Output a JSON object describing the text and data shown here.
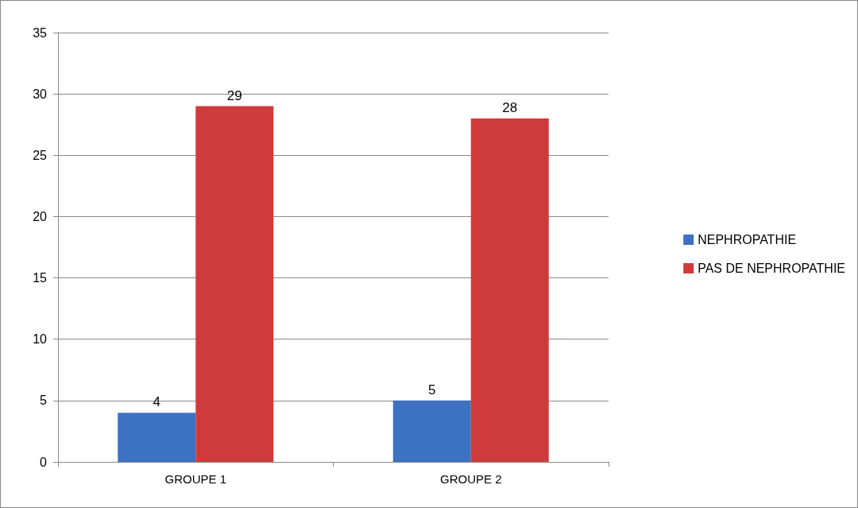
{
  "chart_data": {
    "type": "bar",
    "categories": [
      "GROUPE 1",
      "GROUPE 2"
    ],
    "series": [
      {
        "name": "NEPHROPATHIE",
        "color": "#3d71c2",
        "values": [
          4,
          5
        ]
      },
      {
        "name": "PAS DE NEPHROPATHIE",
        "color": "#cf3b3b",
        "values": [
          29,
          28
        ]
      }
    ],
    "ylim": [
      0,
      35
    ],
    "yticks": [
      0,
      5,
      10,
      15,
      20,
      25,
      30,
      35
    ],
    "grid": "y",
    "legend": "right",
    "data_labels": true
  }
}
